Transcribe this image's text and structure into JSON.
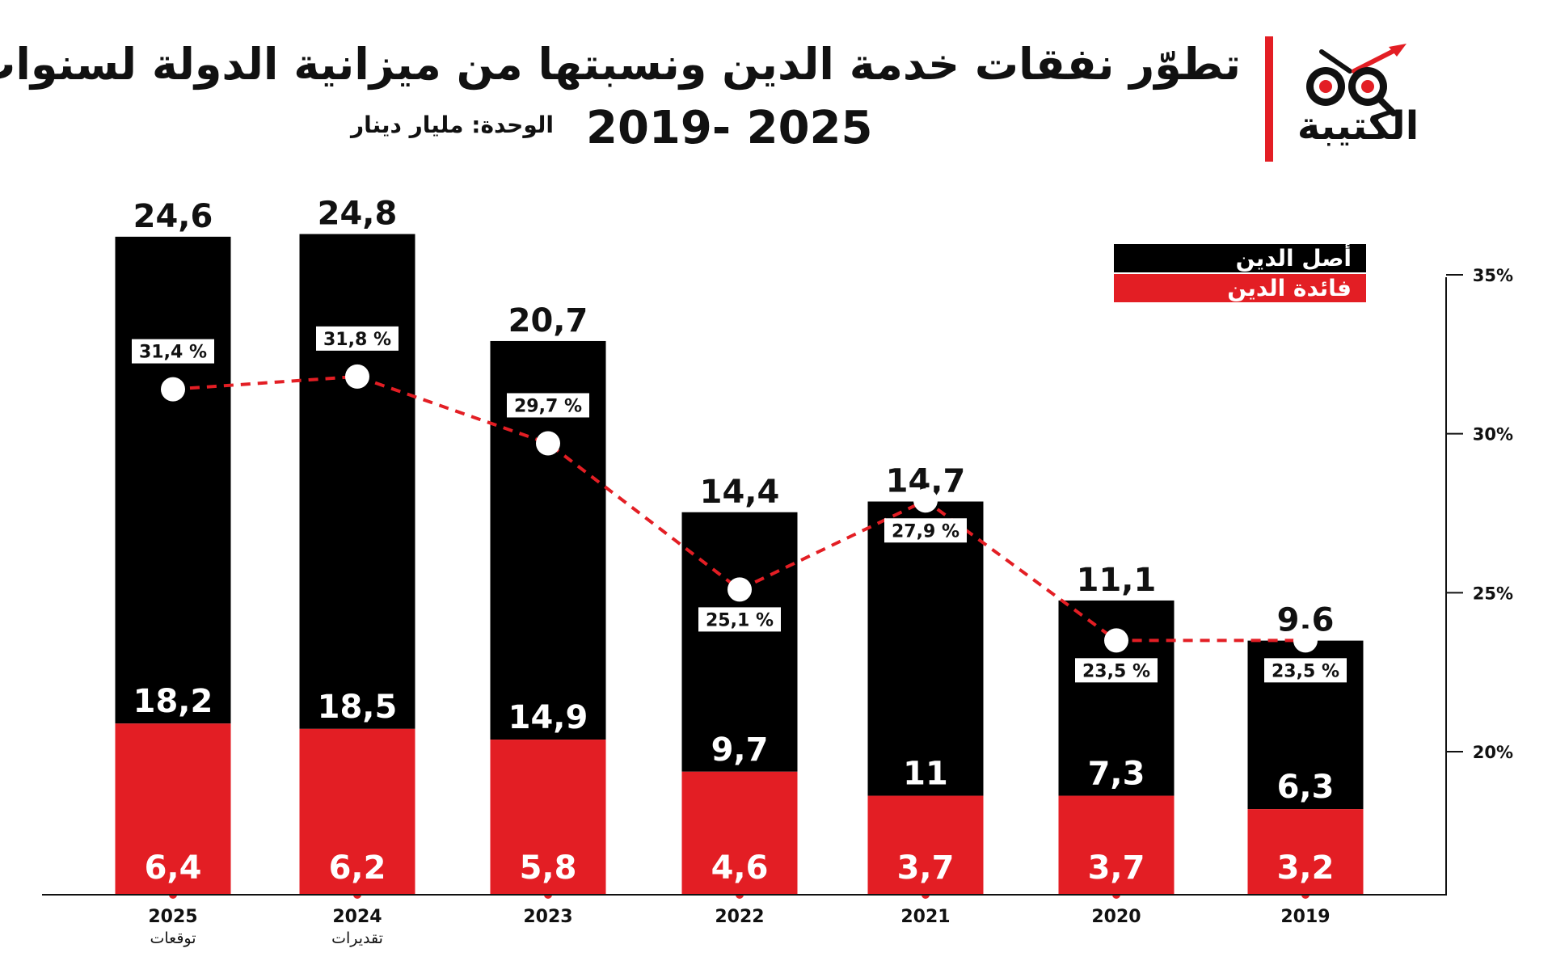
{
  "header": {
    "title_line1": "تطوّر نفقات خدمة الدين ونسبتها من ميزانية الدولة لسنوات",
    "title_line2": "2019- 2025",
    "unit": "الوحدة: مليار دينار"
  },
  "logo": {
    "text": "الكتيبة"
  },
  "legend": {
    "principal": "أصل الدين",
    "interest": "فائدة الدين"
  },
  "colors": {
    "principal": "#000000",
    "interest": "#e31e24",
    "line": "#e31e24",
    "accent": "#e31e24"
  },
  "chart_data": {
    "type": "bar",
    "stacked": true,
    "categories": [
      "2025",
      "2024",
      "2023",
      "2022",
      "2021",
      "2020",
      "2019"
    ],
    "category_sublabels": [
      "توقعات",
      "تقديرات",
      "",
      "",
      "",
      "",
      ""
    ],
    "totals": [
      24.6,
      24.8,
      20.7,
      14.4,
      14.7,
      11.1,
      9.6
    ],
    "total_labels": [
      "24,6",
      "24,8",
      "20,7",
      "14,4",
      "14,7",
      "11,1",
      "9,6"
    ],
    "series": [
      {
        "name": "فائدة الدين",
        "values": [
          6.4,
          6.2,
          5.8,
          4.6,
          3.7,
          3.7,
          3.2
        ],
        "labels": [
          "6,4",
          "6,2",
          "5,8",
          "4,6",
          "3,7",
          "3,7",
          "3,2"
        ]
      },
      {
        "name": "أصل الدين",
        "values": [
          18.2,
          18.5,
          14.9,
          9.7,
          11,
          7.3,
          6.3
        ],
        "labels": [
          "18,2",
          "18,5",
          "14,9",
          "9,7",
          "11",
          "7,3",
          "6,3"
        ]
      }
    ],
    "line": {
      "values": [
        31.4,
        31.8,
        29.7,
        25.1,
        27.9,
        23.5,
        23.5
      ],
      "labels": [
        "31,4 %",
        "31,8 %",
        "29,7 %",
        "25,1 %",
        "27,9 %",
        "23,5 %",
        "23,5 %"
      ]
    },
    "right_axis": {
      "ticks": [
        20,
        25,
        30,
        35
      ],
      "tick_labels": [
        "20%",
        "25%",
        "30%",
        "35%"
      ]
    },
    "ylim": [
      0,
      26.5
    ],
    "right_ylim": [
      15.5,
      35
    ]
  }
}
